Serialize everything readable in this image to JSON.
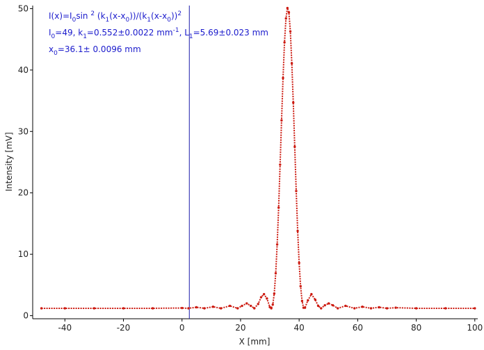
{
  "chart_data": {
    "type": "scatter",
    "x_label": "X [mm]",
    "y_label": "Intensity [mV]",
    "xlim": [
      -51,
      101
    ],
    "ylim": [
      -0.5,
      50.5
    ],
    "xticks": [
      -40,
      -20,
      0,
      20,
      40,
      60,
      80,
      100
    ],
    "yticks": [
      0,
      10,
      20,
      30,
      40,
      50
    ],
    "color": "#cc1a10",
    "vline": {
      "x": 2.5,
      "color": "#1a1aaa"
    },
    "annotations": [
      [
        {
          "text": "I(x)=I"
        },
        {
          "text": "0",
          "shift": "sub"
        },
        {
          "text": "sin "
        },
        {
          "text": "2",
          "shift": "sup"
        },
        {
          "text": " (k"
        },
        {
          "text": "1",
          "shift": "sub"
        },
        {
          "text": "(x-x"
        },
        {
          "text": "0",
          "shift": "sub"
        },
        {
          "text": "))/(k"
        },
        {
          "text": "1",
          "shift": "sub"
        },
        {
          "text": "(x-x"
        },
        {
          "text": "0",
          "shift": "sub"
        },
        {
          "text": "))"
        },
        {
          "text": "2",
          "shift": "sup"
        }
      ],
      [
        {
          "text": "I"
        },
        {
          "text": "0",
          "shift": "sub"
        },
        {
          "text": "=49,  k"
        },
        {
          "text": "1",
          "shift": "sub"
        },
        {
          "text": "=0.552±0.0022 mm"
        },
        {
          "text": "-1",
          "shift": "sup"
        },
        {
          "text": ",   L"
        },
        {
          "text": "1",
          "shift": "sub"
        },
        {
          "text": "=5.69±0.023 mm"
        }
      ],
      [
        {
          "text": "x"
        },
        {
          "text": "0",
          "shift": "sub"
        },
        {
          "text": "=36.1±  0.0096 mm"
        }
      ]
    ],
    "x": [
      -48,
      -40,
      -30,
      -20,
      -10,
      0,
      2.2,
      4.9,
      7.65,
      10.6,
      13.3,
      16.35,
      19,
      20.5,
      22.1,
      23.5,
      24.7,
      26,
      27,
      28,
      29,
      30,
      30.5,
      31,
      31.5,
      32,
      32.5,
      33,
      33.5,
      34,
      34.5,
      35,
      35.5,
      36,
      36.5,
      37,
      37.5,
      38,
      38.5,
      39,
      39.5,
      40,
      40.5,
      41,
      41.5,
      42,
      43,
      44.2,
      45.5,
      46.5,
      47.5,
      48.8,
      50.1,
      51.5,
      53.2,
      55.85,
      58.9,
      61.6,
      64.55,
      67.3,
      70,
      73,
      80,
      90,
      100
    ],
    "values": [
      1.2,
      1.2,
      1.2,
      1.2,
      1.2,
      1.25,
      1.2,
      1.37,
      1.2,
      1.45,
      1.2,
      1.6,
      1.2,
      1.6,
      2.0,
      1.6,
      1.2,
      1.9,
      3.0,
      3.5,
      2.8,
      1.4,
      1.2,
      1.8,
      3.6,
      6.9,
      11.6,
      17.6,
      24.6,
      31.8,
      38.7,
      44.5,
      48.4,
      50.1,
      49.4,
      46.3,
      41.1,
      34.7,
      27.5,
      20.3,
      13.8,
      8.6,
      4.8,
      2.4,
      1.3,
      1.3,
      2.5,
      3.5,
      2.6,
      1.6,
      1.2,
      1.7,
      2.0,
      1.7,
      1.2,
      1.6,
      1.2,
      1.45,
      1.2,
      1.37,
      1.2,
      1.3,
      1.2,
      1.2,
      1.2
    ]
  }
}
